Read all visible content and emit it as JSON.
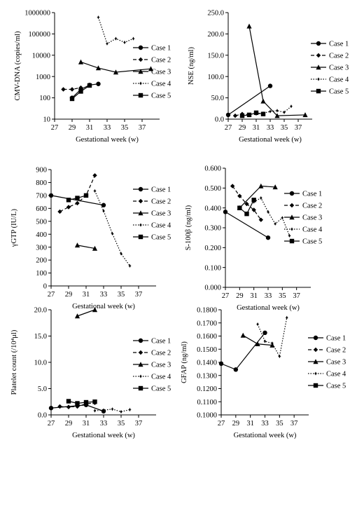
{
  "chart_data": [
    {
      "id": "cmv",
      "type": "line",
      "title": "",
      "xlabel": "Gestational week (w)",
      "ylabel": "CMV-DNA (copies/ml)",
      "yscale": "log",
      "xlim": [
        27,
        39
      ],
      "ylim": [
        10,
        1000000
      ],
      "xticks": [
        "27",
        "29",
        "31",
        "33",
        "35",
        "37"
      ],
      "yticks": [
        "10",
        "100",
        "1000",
        "10000",
        "100000",
        "1000000"
      ],
      "legend_position": "right",
      "series": [
        {
          "name": "Case 1",
          "x": [
            29,
            30,
            31,
            32
          ],
          "y": [
            100,
            250,
            400,
            450
          ]
        },
        {
          "name": "Case 2",
          "x": [
            28,
            29,
            30
          ],
          "y": [
            250,
            250,
            300
          ]
        },
        {
          "name": "Case 3",
          "x": [
            30,
            32,
            34,
            38
          ],
          "y": [
            4800,
            2500,
            1600,
            2300
          ]
        },
        {
          "name": "Case 4",
          "x": [
            32,
            33,
            34,
            35,
            36
          ],
          "y": [
            600000,
            35000,
            60000,
            40000,
            60000
          ]
        },
        {
          "name": "Case 5",
          "x": [
            29,
            30,
            31
          ],
          "y": [
            90,
            200,
            380
          ]
        }
      ]
    },
    {
      "id": "nse",
      "type": "line",
      "title": "",
      "xlabel": "Gestational week (w)",
      "ylabel": "NSE (ng/ml)",
      "yscale": "linear",
      "xlim": [
        27,
        39
      ],
      "ylim": [
        0,
        250
      ],
      "xticks": [
        "27",
        "29",
        "31",
        "33",
        "35",
        "37"
      ],
      "yticks": [
        "0.0",
        "50.0",
        "100.0",
        "150.0",
        "200.0",
        "250.0"
      ],
      "legend_position": "right",
      "series": [
        {
          "name": "Case 1",
          "x": [
            27,
            33
          ],
          "y": [
            10,
            78
          ]
        },
        {
          "name": "Case 2",
          "x": [
            28,
            29,
            30
          ],
          "y": [
            8,
            12,
            10
          ]
        },
        {
          "name": "Case 3",
          "x": [
            30,
            32,
            34,
            38
          ],
          "y": [
            218,
            42,
            8,
            10
          ]
        },
        {
          "name": "Case 4",
          "x": [
            31,
            32,
            33,
            34,
            35,
            36
          ],
          "y": [
            12,
            14,
            18,
            20,
            16,
            30
          ]
        },
        {
          "name": "Case 5",
          "x": [
            29,
            30,
            31,
            32
          ],
          "y": [
            8,
            10,
            15,
            12
          ]
        }
      ]
    },
    {
      "id": "ggtp",
      "type": "line",
      "title": "",
      "xlabel": "Gestational week (w)",
      "ylabel": "γGTP (IU/L)",
      "yscale": "linear",
      "xlim": [
        27,
        39
      ],
      "ylim": [
        0,
        900
      ],
      "xticks": [
        "27",
        "29",
        "31",
        "33",
        "35",
        "37"
      ],
      "yticks": [
        "0",
        "100",
        "200",
        "300",
        "400",
        "500",
        "600",
        "700",
        "800",
        "900"
      ],
      "legend_position": "right",
      "series": [
        {
          "name": "Case 1",
          "x": [
            27,
            33
          ],
          "y": [
            700,
            625
          ]
        },
        {
          "name": "Case 2",
          "x": [
            28,
            29,
            30,
            31,
            32
          ],
          "y": [
            575,
            610,
            640,
            700,
            855
          ]
        },
        {
          "name": "Case 3",
          "x": [
            30,
            32
          ],
          "y": [
            315,
            290
          ]
        },
        {
          "name": "Case 4",
          "x": [
            32,
            33,
            34,
            35,
            36
          ],
          "y": [
            735,
            580,
            405,
            250,
            155
          ]
        },
        {
          "name": "Case 5",
          "x": [
            29,
            30,
            31
          ],
          "y": [
            665,
            680,
            700
          ]
        }
      ]
    },
    {
      "id": "s100",
      "type": "line",
      "title": "",
      "xlabel": "Gestational week (w)",
      "ylabel": "S-100β (ng/ml)",
      "yscale": "linear",
      "xlim": [
        27,
        39
      ],
      "ylim": [
        0,
        0.6
      ],
      "xticks": [
        "27",
        "29",
        "31",
        "33",
        "35",
        "37"
      ],
      "yticks": [
        "0.000",
        "0.100",
        "0.200",
        "0.300",
        "0.400",
        "0.500",
        "0.600"
      ],
      "legend_position": "right",
      "series": [
        {
          "name": "Case 1",
          "x": [
            27,
            33
          ],
          "y": [
            0.38,
            0.25
          ]
        },
        {
          "name": "Case 2",
          "x": [
            28,
            29,
            30,
            31,
            32
          ],
          "y": [
            0.51,
            0.46,
            0.42,
            0.39,
            0.34
          ]
        },
        {
          "name": "Case 3",
          "x": [
            29,
            32,
            34
          ],
          "y": [
            0.4,
            0.51,
            0.505
          ]
        },
        {
          "name": "Case 4",
          "x": [
            31,
            32,
            33,
            34,
            35,
            36
          ],
          "y": [
            0.43,
            0.45,
            0.38,
            0.32,
            0.35,
            0.26
          ]
        },
        {
          "name": "Case 5",
          "x": [
            29,
            30,
            31
          ],
          "y": [
            0.4,
            0.37,
            0.44
          ]
        }
      ]
    },
    {
      "id": "plt",
      "type": "line",
      "title": "",
      "xlabel": "Gestational week (w)",
      "ylabel": "Platelet count (/10⁴μl)",
      "yscale": "linear",
      "xlim": [
        27,
        39
      ],
      "ylim": [
        0,
        20
      ],
      "xticks": [
        "27",
        "29",
        "31",
        "33",
        "35",
        "37"
      ],
      "yticks": [
        "0.0",
        "5.0",
        "10.0",
        "15.0",
        "20.0"
      ],
      "legend_position": "right",
      "series": [
        {
          "name": "Case 1",
          "x": [
            27,
            31,
            33
          ],
          "y": [
            1.3,
            1.9,
            0.7
          ]
        },
        {
          "name": "Case 2",
          "x": [
            28,
            29,
            30,
            31,
            32
          ],
          "y": [
            1.6,
            1.5,
            1.6,
            2.1,
            2.3
          ]
        },
        {
          "name": "Case 3",
          "x": [
            30,
            32
          ],
          "y": [
            18.8,
            20.0
          ]
        },
        {
          "name": "Case 4",
          "x": [
            32,
            33,
            34,
            35,
            36
          ],
          "y": [
            0.8,
            0.9,
            1.1,
            0.6,
            1.0
          ]
        },
        {
          "name": "Case 5",
          "x": [
            29,
            30,
            31,
            32
          ],
          "y": [
            2.6,
            2.2,
            2.4,
            2.5
          ]
        }
      ]
    },
    {
      "id": "gfap",
      "type": "line",
      "title": "",
      "xlabel": "Gestational week (w)",
      "ylabel": "GFAP (ng/ml)",
      "yscale": "linear",
      "xlim": [
        27,
        39
      ],
      "ylim": [
        0.1,
        0.18
      ],
      "xticks": [
        "27",
        "29",
        "31",
        "33",
        "35",
        "37"
      ],
      "yticks": [
        "0.1000",
        "0.1100",
        "0.1200",
        "0.1300",
        "0.1400",
        "0.1500",
        "0.1600",
        "0.1700",
        "0.1800"
      ],
      "legend_position": "right",
      "series": [
        {
          "name": "Case 1",
          "x": [
            27,
            29,
            33
          ],
          "y": [
            0.139,
            0.1345,
            0.1625
          ]
        },
        {
          "name": "Case 2",
          "x": [],
          "y": []
        },
        {
          "name": "Case 3",
          "x": [
            30,
            32,
            34
          ],
          "y": [
            0.1605,
            0.154,
            0.153
          ]
        },
        {
          "name": "Case 4",
          "x": [
            32,
            33,
            34,
            35,
            36
          ],
          "y": [
            0.169,
            0.156,
            0.1545,
            0.1445,
            0.174
          ]
        },
        {
          "name": "Case 5",
          "x": [],
          "y": []
        }
      ]
    }
  ]
}
